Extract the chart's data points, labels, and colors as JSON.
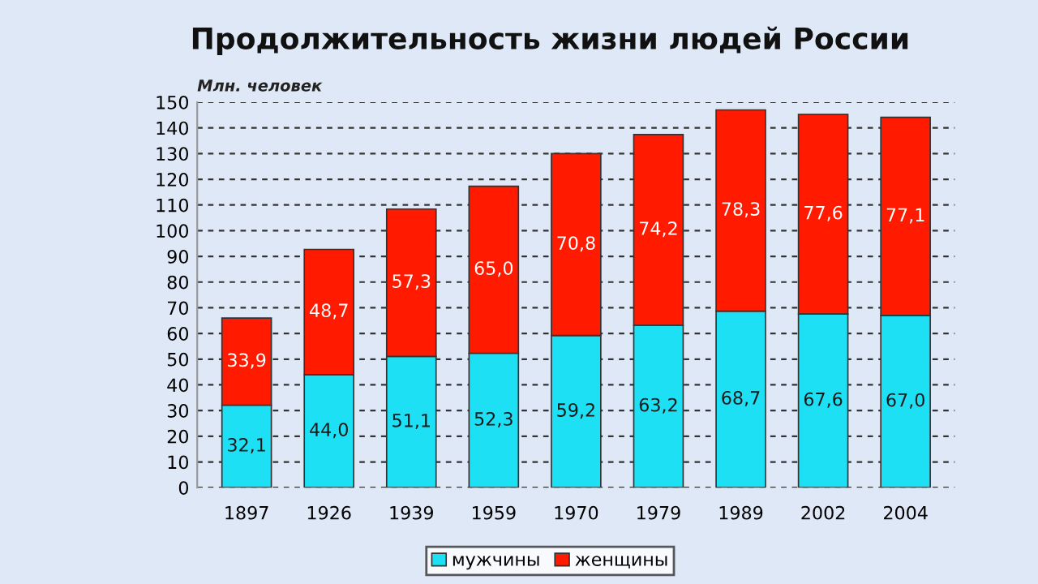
{
  "chart_data": {
    "type": "bar",
    "title": "Продолжительность жизни людей России",
    "ylabel": "Млн. человек",
    "categories": [
      "1897",
      "1926",
      "1939",
      "1959",
      "1970",
      "1979",
      "1989",
      "2002",
      "2004"
    ],
    "stacked": true,
    "series": [
      {
        "name": "мужчины",
        "color": "#1ee0f5",
        "values": [
          32.1,
          44.0,
          51.1,
          52.3,
          59.2,
          63.2,
          68.7,
          67.6,
          67.0
        ],
        "value_labels": [
          "32,1",
          "44,0",
          "51,1",
          "52,3",
          "59,2",
          "63,2",
          "68,7",
          "67,6",
          "67,0"
        ]
      },
      {
        "name": "женщины",
        "color": "#ff1a00",
        "values": [
          33.9,
          48.7,
          57.3,
          65.0,
          70.8,
          74.2,
          78.3,
          77.6,
          77.1
        ],
        "value_labels": [
          "33,9",
          "48,7",
          "57,3",
          "65,0",
          "70,8",
          "74,2",
          "78,3",
          "77,6",
          "77,1"
        ]
      }
    ],
    "ylim": [
      0,
      150
    ],
    "yticks": [
      0,
      10,
      20,
      30,
      40,
      50,
      60,
      70,
      80,
      90,
      100,
      110,
      120,
      130,
      140,
      150
    ],
    "grid": "y",
    "legend": "bottom"
  }
}
